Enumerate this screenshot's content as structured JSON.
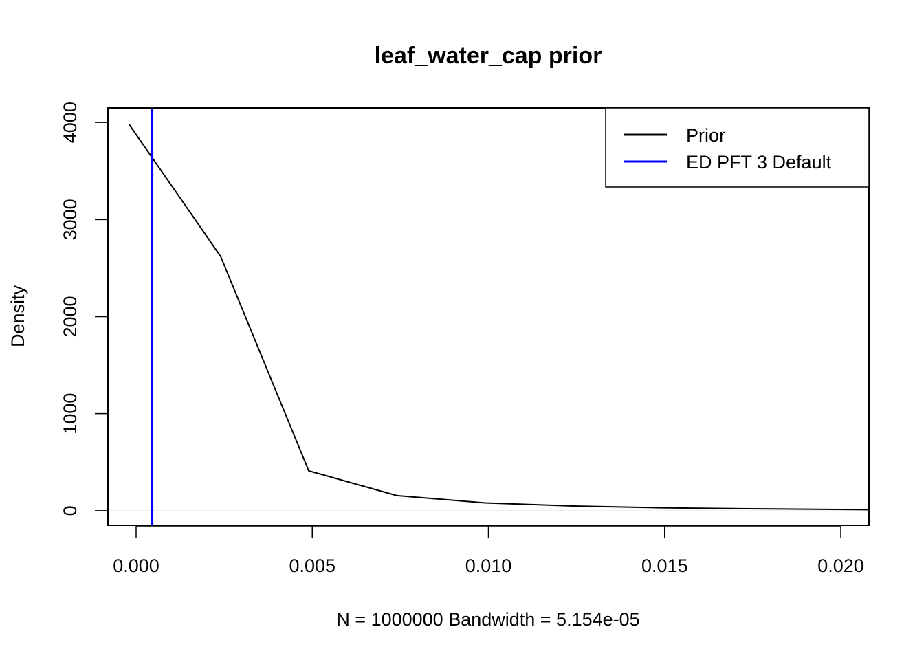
{
  "chart_data": {
    "type": "line",
    "title": "leaf_water_cap prior",
    "xlabel": "N = 1000000   Bandwidth = 5.154e-05",
    "ylabel": "Density",
    "xlim": [
      -0.0008,
      0.0208
    ],
    "ylim": [
      -150,
      4150
    ],
    "x_ticks": [
      0.0,
      0.005,
      0.01,
      0.015,
      0.02
    ],
    "x_tick_labels": [
      "0.000",
      "0.005",
      "0.010",
      "0.015",
      "0.020"
    ],
    "y_ticks": [
      0,
      1000,
      2000,
      3000,
      4000
    ],
    "y_tick_labels": [
      "0",
      "1000",
      "2000",
      "3000",
      "4000"
    ],
    "series": [
      {
        "name": "Prior",
        "color": "#000000",
        "x": [
          -0.0002,
          0.0024,
          0.0049,
          0.0074,
          0.0099,
          0.0124,
          0.0149,
          0.0174,
          0.0199,
          0.0208
        ],
        "y": [
          3980,
          2620,
          410,
          155,
          80,
          48,
          30,
          20,
          13,
          10
        ]
      }
    ],
    "vlines": [
      {
        "name": "ED PFT 3 Default",
        "x": 0.00045,
        "color": "#0000ff"
      }
    ],
    "zero_line": true,
    "grid": false,
    "legend": {
      "position": "top-right",
      "entries": [
        {
          "label": "Prior",
          "color": "#000000"
        },
        {
          "label": "ED PFT 3 Default",
          "color": "#0000ff"
        }
      ]
    }
  }
}
